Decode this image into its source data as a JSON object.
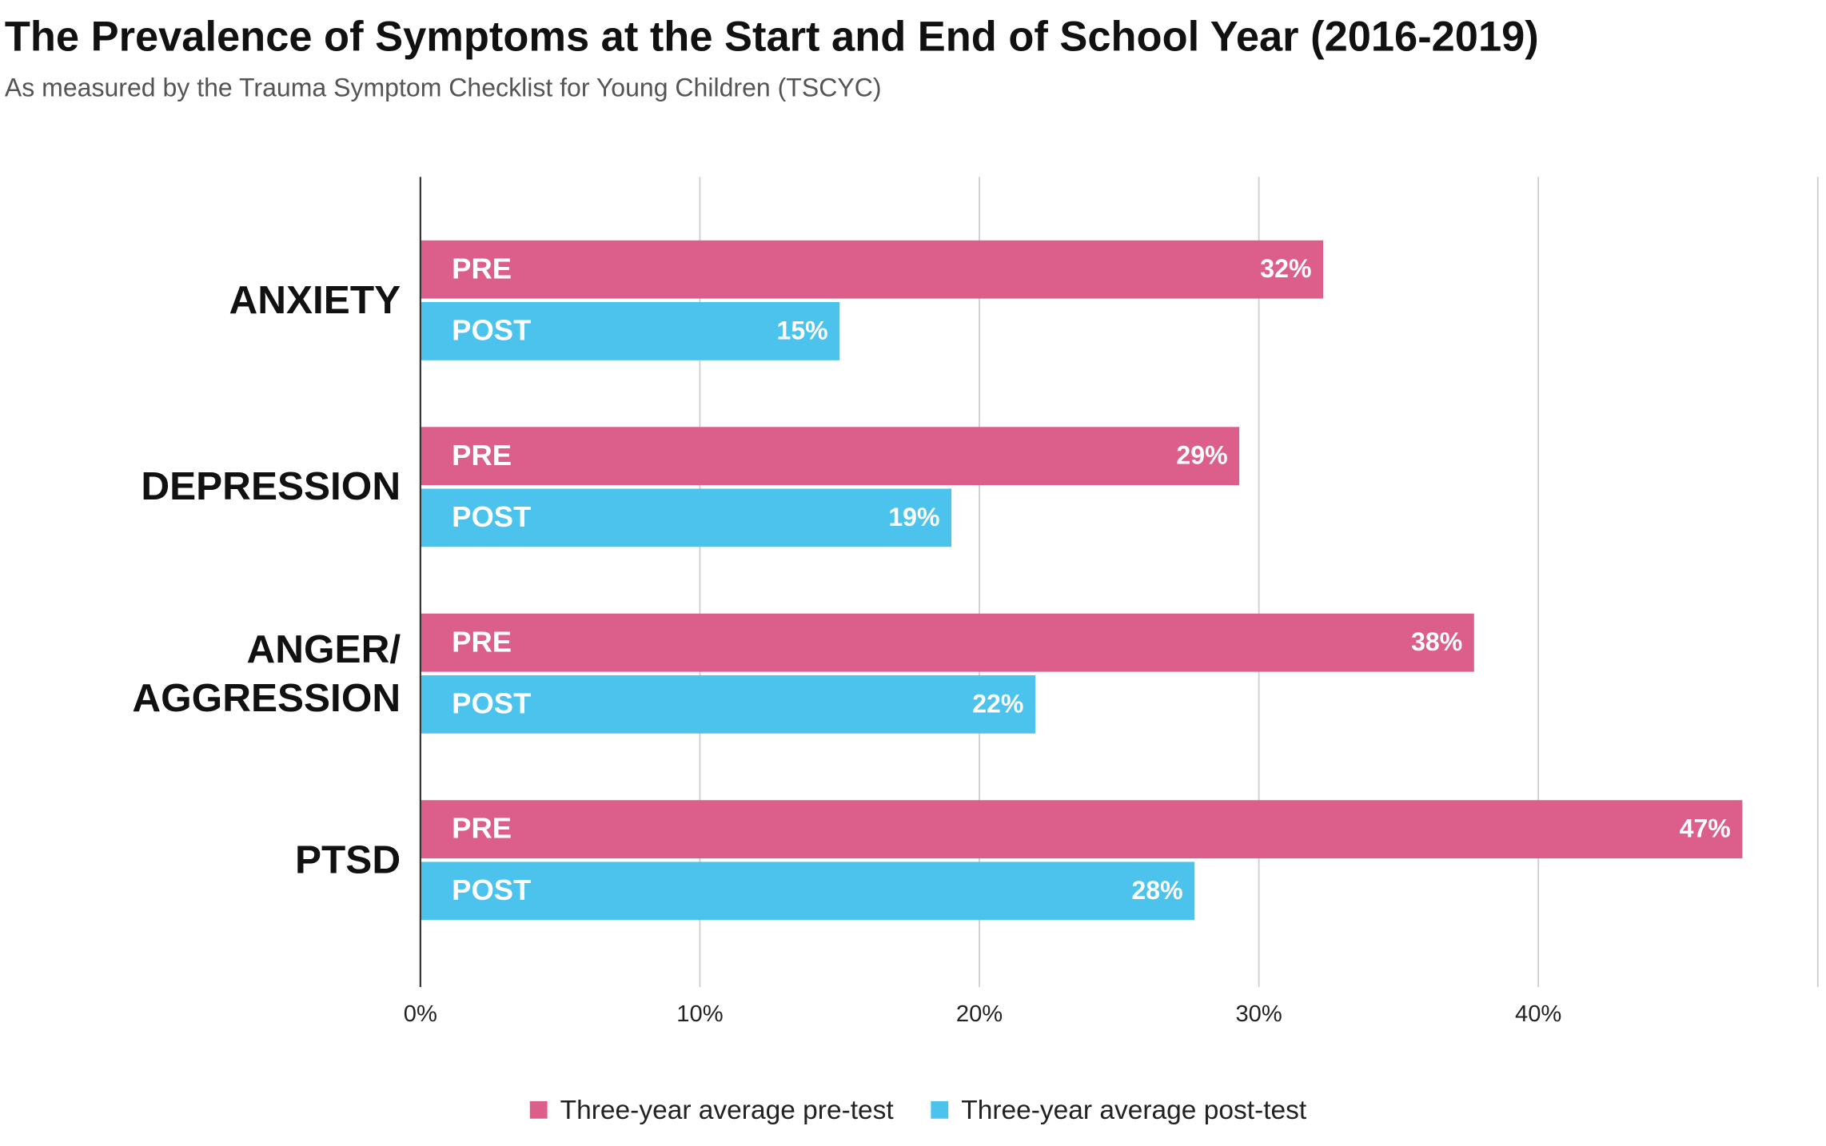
{
  "chart_data": {
    "type": "bar",
    "orientation": "horizontal",
    "title": "The Prevalence of Symptoms at the Start and End of School Year (2016-2019)",
    "subtitle": "As measured by the Trauma Symptom Checklist for Young Children (TSCYC)",
    "categories": [
      "ANXIETY",
      "DEPRESSION",
      "ANGER/\nAGGRESSION",
      "PTSD"
    ],
    "series": [
      {
        "name": "Three-year average pre-test",
        "bar_label": "PRE",
        "color": "#db5f8a",
        "values": [
          32.3,
          29.3,
          37.7,
          47.3
        ],
        "value_labels": [
          "32%",
          "29%",
          "38%",
          "47%"
        ]
      },
      {
        "name": "Three-year average post-test",
        "bar_label": "POST",
        "color": "#4cc3ec",
        "values": [
          15.0,
          19.0,
          22.0,
          27.7
        ],
        "value_labels": [
          "15%",
          "19%",
          "22%",
          "28%"
        ]
      }
    ],
    "xlim": [
      0,
      50
    ],
    "xticks": [
      {
        "value": 0,
        "label": "0%"
      },
      {
        "value": 10,
        "label": "10%"
      },
      {
        "value": 20,
        "label": "20%"
      },
      {
        "value": 30,
        "label": "30%"
      },
      {
        "value": 40,
        "label": "40%"
      }
    ],
    "grid": true,
    "legend": "bottom"
  }
}
